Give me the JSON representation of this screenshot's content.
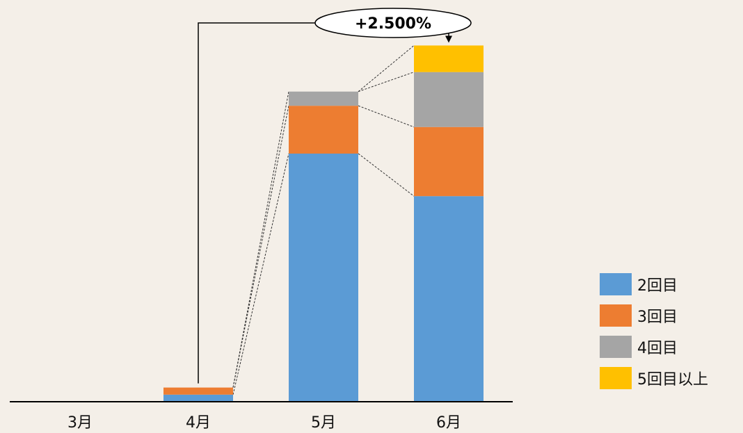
{
  "chart_data": {
    "type": "bar",
    "stacked": true,
    "categories": [
      "3月",
      "4月",
      "5月",
      "6月"
    ],
    "series": [
      {
        "name": "2回目",
        "values": [
          0,
          2,
          70,
          58
        ],
        "color": "#5b9bd5"
      },
      {
        "name": "3回目",
        "values": [
          0,
          2,
          13.5,
          19.5
        ],
        "color": "#ed7d31"
      },
      {
        "name": "4回目",
        "values": [
          0,
          0,
          4,
          15.5
        ],
        "color": "#a5a5a5"
      },
      {
        "name": "5回目以上",
        "values": [
          0,
          0,
          0,
          7.5
        ],
        "color": "#ffc000"
      }
    ],
    "ylim": [
      0,
      100
    ],
    "grid": false,
    "legend_position": "right",
    "annotation": {
      "text": "+2.500%",
      "from": "4月",
      "to": "6月"
    },
    "connector_lines": "dashed"
  }
}
